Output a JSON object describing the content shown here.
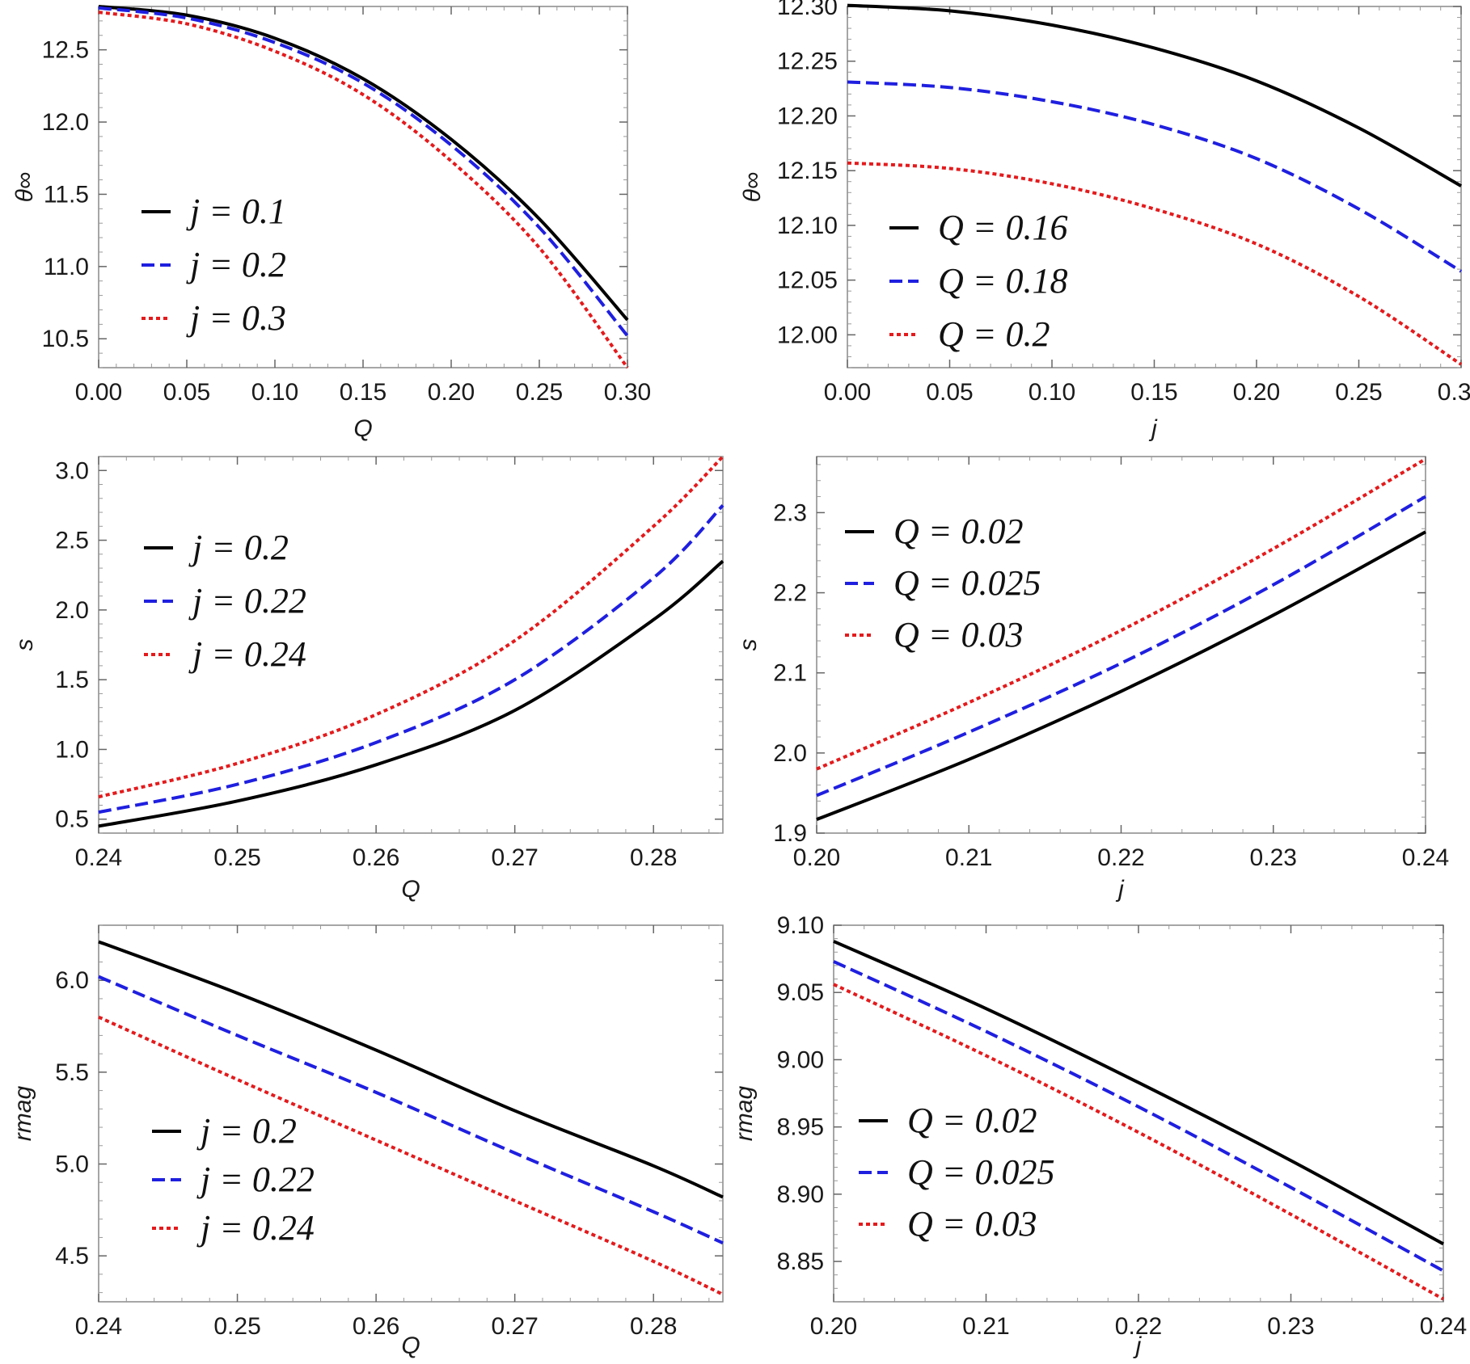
{
  "chart_data": [
    {
      "type": "line",
      "xlabel": "Q",
      "ylabel": "θ∞",
      "xlim": [
        0,
        0.3
      ],
      "ylim": [
        10.3,
        12.8
      ],
      "xticks": [
        0,
        0.05,
        0.1,
        0.15,
        0.2,
        0.25,
        0.3
      ],
      "xtick_labels": [
        "0.00",
        "0.05",
        "0.10",
        "0.15",
        "0.20",
        "0.25",
        "0.30"
      ],
      "yticks": [
        10.5,
        11,
        11.5,
        12,
        12.5
      ],
      "ytick_labels": [
        "10.5",
        "11.0",
        "11.5",
        "12.0",
        "12.5"
      ],
      "legend_position": "left",
      "series": [
        {
          "name": "j = 0.1",
          "color": "#000000",
          "style": "solid",
          "x": [
            0,
            0.05,
            0.1,
            0.15,
            0.2,
            0.25,
            0.3
          ],
          "y": [
            12.8,
            12.74,
            12.58,
            12.3,
            11.88,
            11.33,
            10.63
          ]
        },
        {
          "name": "j = 0.2",
          "color": "#1f1fe0",
          "style": "dashed",
          "x": [
            0,
            0.05,
            0.1,
            0.15,
            0.2,
            0.25,
            0.3
          ],
          "y": [
            12.79,
            12.72,
            12.55,
            12.27,
            11.84,
            11.27,
            10.52
          ]
        },
        {
          "name": "j = 0.3",
          "color": "#e41a1c",
          "style": "dotted",
          "x": [
            0,
            0.05,
            0.1,
            0.15,
            0.2,
            0.25,
            0.3
          ],
          "y": [
            12.76,
            12.68,
            12.49,
            12.19,
            11.73,
            11.13,
            10.3
          ]
        }
      ]
    },
    {
      "type": "line",
      "xlabel": "j",
      "ylabel": "θ∞",
      "xlim": [
        0,
        0.3
      ],
      "ylim": [
        11.97,
        12.3
      ],
      "xticks": [
        0,
        0.05,
        0.1,
        0.15,
        0.2,
        0.25,
        0.3
      ],
      "xtick_labels": [
        "0.00",
        "0.05",
        "0.10",
        "0.15",
        "0.20",
        "0.25",
        "0.30"
      ],
      "yticks": [
        12.0,
        12.05,
        12.1,
        12.15,
        12.2,
        12.25,
        12.3
      ],
      "ytick_labels": [
        "12.00",
        "12.05",
        "12.10",
        "12.15",
        "12.20",
        "12.25",
        "12.30"
      ],
      "legend_position": "bottom-left",
      "series": [
        {
          "name": "Q = 0.16",
          "color": "#000000",
          "style": "solid",
          "x": [
            0,
            0.05,
            0.1,
            0.15,
            0.2,
            0.25,
            0.3
          ],
          "y": [
            12.301,
            12.296,
            12.283,
            12.262,
            12.232,
            12.189,
            12.136
          ]
        },
        {
          "name": "Q = 0.18",
          "color": "#1f1fe0",
          "style": "dashed",
          "x": [
            0,
            0.05,
            0.1,
            0.15,
            0.2,
            0.25,
            0.3
          ],
          "y": [
            12.231,
            12.226,
            12.213,
            12.192,
            12.161,
            12.115,
            12.058
          ]
        },
        {
          "name": "Q = 0.2",
          "color": "#e41a1c",
          "style": "dotted",
          "x": [
            0,
            0.05,
            0.1,
            0.15,
            0.2,
            0.25,
            0.3
          ],
          "y": [
            12.157,
            12.152,
            12.138,
            12.115,
            12.083,
            12.035,
            11.973
          ]
        }
      ]
    },
    {
      "type": "line",
      "xlabel": "Q",
      "ylabel": "s",
      "xlim": [
        0.24,
        0.285
      ],
      "ylim": [
        0.4,
        3.1
      ],
      "xticks": [
        0.24,
        0.25,
        0.26,
        0.27,
        0.28
      ],
      "xtick_labels": [
        "0.24",
        "0.25",
        "0.26",
        "0.27",
        "0.28"
      ],
      "yticks": [
        0.5,
        1,
        1.5,
        2,
        2.5,
        3
      ],
      "ytick_labels": [
        "0.5",
        "1.0",
        "1.5",
        "2.0",
        "2.5",
        "3.0"
      ],
      "legend_position": "top-left",
      "series": [
        {
          "name": "j = 0.2",
          "color": "#000000",
          "style": "solid",
          "x": [
            0.24,
            0.25,
            0.26,
            0.27,
            0.28,
            0.285
          ],
          "y": [
            0.45,
            0.63,
            0.89,
            1.28,
            1.93,
            2.35
          ]
        },
        {
          "name": "j = 0.22",
          "color": "#1f1fe0",
          "style": "dashed",
          "x": [
            0.24,
            0.25,
            0.26,
            0.27,
            0.28,
            0.285
          ],
          "y": [
            0.55,
            0.75,
            1.05,
            1.5,
            2.23,
            2.75
          ]
        },
        {
          "name": "j = 0.24",
          "color": "#e41a1c",
          "style": "dotted",
          "x": [
            0.24,
            0.25,
            0.26,
            0.27,
            0.28,
            0.285
          ],
          "y": [
            0.66,
            0.9,
            1.25,
            1.78,
            2.6,
            3.1
          ]
        }
      ]
    },
    {
      "type": "line",
      "xlabel": "j",
      "ylabel": "s",
      "xlim": [
        0.2,
        0.24
      ],
      "ylim": [
        1.9,
        2.37
      ],
      "xticks": [
        0.2,
        0.21,
        0.22,
        0.23,
        0.24
      ],
      "xtick_labels": [
        "0.20",
        "0.21",
        "0.22",
        "0.23",
        "0.24"
      ],
      "yticks": [
        1.9,
        2,
        2.1,
        2.2,
        2.3
      ],
      "ytick_labels": [
        "1.9",
        "2.0",
        "2.1",
        "2.2",
        "2.3"
      ],
      "legend_position": "top-left",
      "series": [
        {
          "name": "Q = 0.02",
          "color": "#000000",
          "style": "solid",
          "x": [
            0.2,
            0.21,
            0.22,
            0.23,
            0.24
          ],
          "y": [
            1.917,
            1.992,
            2.077,
            2.172,
            2.276
          ]
        },
        {
          "name": "Q = 0.025",
          "color": "#1f1fe0",
          "style": "dashed",
          "x": [
            0.2,
            0.21,
            0.22,
            0.23,
            0.24
          ],
          "y": [
            1.947,
            2.026,
            2.112,
            2.21,
            2.32
          ]
        },
        {
          "name": "Q = 0.03",
          "color": "#e41a1c",
          "style": "dotted",
          "x": [
            0.2,
            0.21,
            0.22,
            0.23,
            0.24
          ],
          "y": [
            1.98,
            2.063,
            2.153,
            2.255,
            2.367
          ]
        }
      ]
    },
    {
      "type": "line",
      "xlabel": "Q",
      "ylabel": "rmag",
      "xlim": [
        0.24,
        0.285
      ],
      "ylim": [
        4.25,
        6.3
      ],
      "xticks": [
        0.24,
        0.25,
        0.26,
        0.27,
        0.28
      ],
      "xtick_labels": [
        "0.24",
        "0.25",
        "0.26",
        "0.27",
        "0.28"
      ],
      "yticks": [
        4.5,
        5,
        5.5,
        6
      ],
      "ytick_labels": [
        "4.5",
        "5.0",
        "5.5",
        "6.0"
      ],
      "legend_position": "bottom-left",
      "series": [
        {
          "name": "j = 0.2",
          "color": "#000000",
          "style": "solid",
          "x": [
            0.24,
            0.25,
            0.26,
            0.27,
            0.28,
            0.285
          ],
          "y": [
            6.21,
            5.93,
            5.62,
            5.29,
            4.99,
            4.82
          ]
        },
        {
          "name": "j = 0.22",
          "color": "#1f1fe0",
          "style": "dashed",
          "x": [
            0.24,
            0.25,
            0.26,
            0.27,
            0.28,
            0.285
          ],
          "y": [
            6.02,
            5.7,
            5.39,
            5.06,
            4.74,
            4.57
          ]
        },
        {
          "name": "j = 0.24",
          "color": "#e41a1c",
          "style": "dotted",
          "x": [
            0.24,
            0.25,
            0.26,
            0.27,
            0.28,
            0.285
          ],
          "y": [
            5.8,
            5.46,
            5.13,
            4.8,
            4.47,
            4.29
          ]
        }
      ]
    },
    {
      "type": "line",
      "xlabel": "j",
      "ylabel": "rmag",
      "xlim": [
        0.2,
        0.24
      ],
      "ylim": [
        8.82,
        9.1
      ],
      "xticks": [
        0.2,
        0.21,
        0.22,
        0.23,
        0.24
      ],
      "xtick_labels": [
        "0.20",
        "0.21",
        "0.22",
        "0.23",
        "0.24"
      ],
      "yticks": [
        8.85,
        8.9,
        8.95,
        9.0,
        9.05,
        9.1
      ],
      "ytick_labels": [
        "8.85",
        "8.90",
        "8.95",
        "9.00",
        "9.05",
        "9.10"
      ],
      "legend_position": "bottom-left",
      "series": [
        {
          "name": "Q = 0.02",
          "color": "#000000",
          "style": "solid",
          "x": [
            0.2,
            0.21,
            0.22,
            0.23,
            0.24
          ],
          "y": [
            9.088,
            9.038,
            8.983,
            8.925,
            8.863
          ]
        },
        {
          "name": "Q = 0.025",
          "color": "#1f1fe0",
          "style": "dashed",
          "x": [
            0.2,
            0.21,
            0.22,
            0.23,
            0.24
          ],
          "y": [
            9.073,
            9.021,
            8.965,
            8.905,
            8.843
          ]
        },
        {
          "name": "Q = 0.03",
          "color": "#e41a1c",
          "style": "dotted",
          "x": [
            0.2,
            0.21,
            0.22,
            0.23,
            0.24
          ],
          "y": [
            9.056,
            9.003,
            8.946,
            8.885,
            8.822
          ]
        }
      ]
    }
  ]
}
